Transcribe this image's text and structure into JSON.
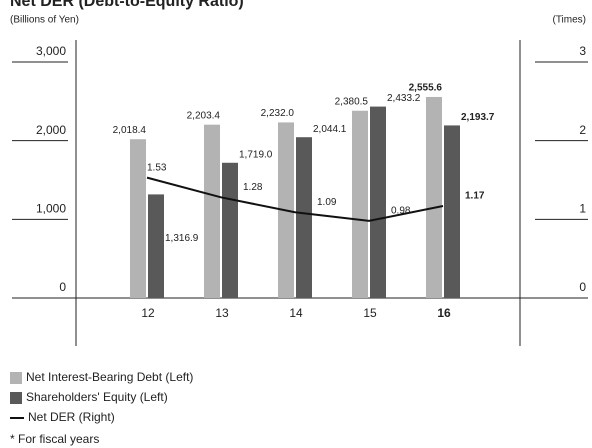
{
  "chart_data": {
    "type": "bar",
    "title": "Net DER (Debt-to-Equity Ratio)",
    "y_label": "(Billions of Yen)",
    "y2_label": "(Times)",
    "categories": [
      "12",
      "13",
      "14",
      "15",
      "16"
    ],
    "series": [
      {
        "name": "Net Interest-Bearing Debt (Left)",
        "color": "#b3b3b3",
        "type": "bar",
        "values": [
          2018.4,
          2203.4,
          2232.0,
          2380.5,
          2555.6
        ],
        "value_labels": [
          "2,018.4",
          "2,203.4",
          "2,232.0",
          "2,380.5",
          "2,555.6"
        ]
      },
      {
        "name": "Shareholders' Equity (Left)",
        "color": "#595959",
        "type": "bar",
        "values": [
          1316.9,
          1719.0,
          2044.1,
          2433.2,
          2193.7
        ],
        "value_labels": [
          "1,316.9",
          "1,719.0",
          "2,044.1",
          "2,433.2",
          "2,193.7"
        ]
      },
      {
        "name": "Net DER (Right)",
        "color": "#111111",
        "type": "line",
        "axis": "y2",
        "values": [
          1.53,
          1.28,
          1.09,
          0.98,
          1.17
        ]
      }
    ],
    "ylim": [
      0,
      3000
    ],
    "yticks": [
      0,
      {
        "value": 1000,
        "label": "1,000"
      },
      {
        "value": 2000,
        "label": "2,000"
      },
      {
        "value": 3000,
        "label": "3,000"
      }
    ],
    "y2lim": [
      0,
      3
    ],
    "y2ticks": [
      0,
      1,
      2,
      3
    ],
    "footnote": "* For fiscal years"
  }
}
